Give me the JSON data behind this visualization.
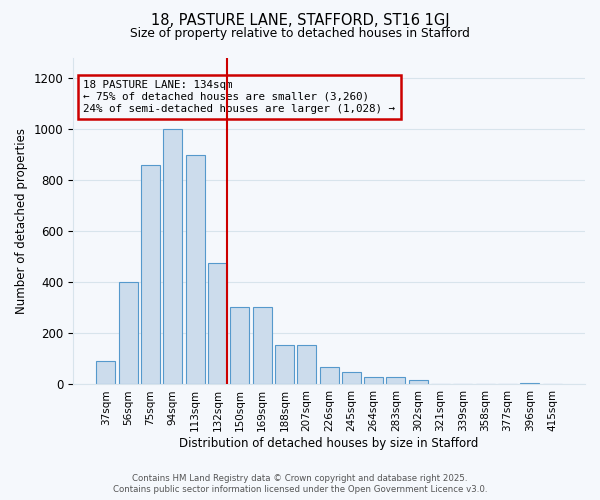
{
  "title1": "18, PASTURE LANE, STAFFORD, ST16 1GJ",
  "title2": "Size of property relative to detached houses in Stafford",
  "xlabel": "Distribution of detached houses by size in Stafford",
  "ylabel": "Number of detached properties",
  "categories": [
    "37sqm",
    "56sqm",
    "75sqm",
    "94sqm",
    "113sqm",
    "132sqm",
    "150sqm",
    "169sqm",
    "188sqm",
    "207sqm",
    "226sqm",
    "245sqm",
    "264sqm",
    "283sqm",
    "302sqm",
    "321sqm",
    "339sqm",
    "358sqm",
    "377sqm",
    "396sqm",
    "415sqm"
  ],
  "values": [
    90,
    400,
    860,
    1000,
    900,
    475,
    305,
    305,
    155,
    155,
    70,
    50,
    30,
    30,
    18,
    0,
    0,
    0,
    0,
    5,
    0
  ],
  "bar_color": "#ccdcec",
  "bar_edgecolor": "#5599cc",
  "grid_color": "#d8e4ec",
  "bg_color": "#f5f8fc",
  "annotation_box_edgecolor": "#cc0000",
  "annotation_line1": "18 PASTURE LANE: 134sqm",
  "annotation_line2": "← 75% of detached houses are smaller (3,260)",
  "annotation_line3": "24% of semi-detached houses are larger (1,028) →",
  "vline_color": "#cc0000",
  "vline_x_index": 5,
  "ylim": [
    0,
    1280
  ],
  "yticks": [
    0,
    200,
    400,
    600,
    800,
    1000,
    1200
  ],
  "footer1": "Contains HM Land Registry data © Crown copyright and database right 2025.",
  "footer2": "Contains public sector information licensed under the Open Government Licence v3.0."
}
